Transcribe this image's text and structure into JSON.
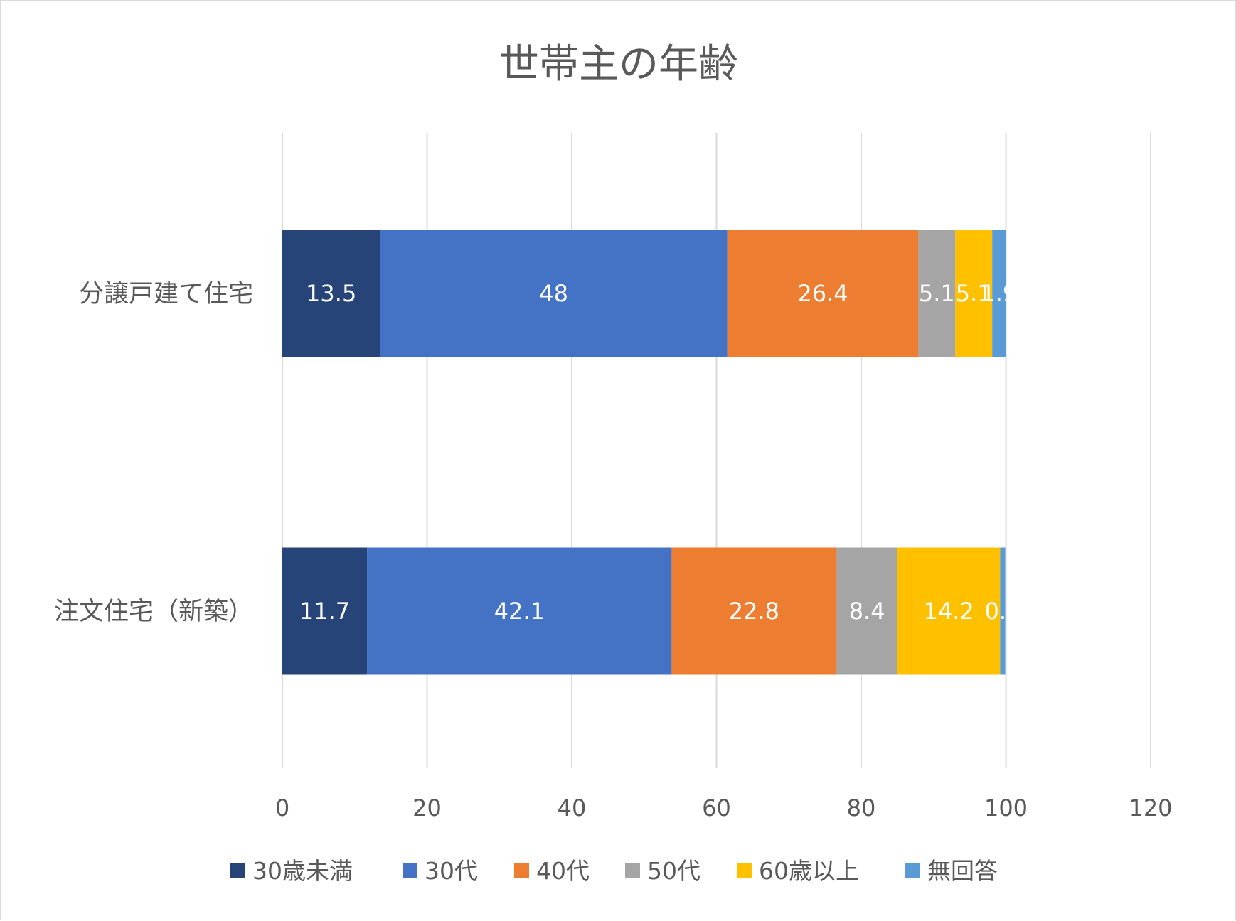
{
  "chart_data": {
    "type": "bar",
    "orientation": "horizontal",
    "stacked": true,
    "title": "世帯主の年齢",
    "categories": [
      "分譲戸建て住宅",
      "注文住宅（新築）"
    ],
    "series": [
      {
        "name": "30歳未満",
        "color": "#264478",
        "values": [
          13.5,
          11.7
        ],
        "labels": [
          "13.5",
          "11.7"
        ]
      },
      {
        "name": "30代",
        "color": "#4472C4",
        "values": [
          48,
          42.1
        ],
        "labels": [
          "48",
          "42.1"
        ]
      },
      {
        "name": "40代",
        "color": "#ED7D31",
        "values": [
          26.4,
          22.8
        ],
        "labels": [
          "26.4",
          "22.8"
        ]
      },
      {
        "name": "50代",
        "color": "#A5A5A5",
        "values": [
          5.1,
          8.4
        ],
        "labels": [
          "5.1",
          "8.4"
        ]
      },
      {
        "name": "60歳以上",
        "color": "#FFC000",
        "values": [
          5.1,
          14.2
        ],
        "labels": [
          "5.1",
          "14.2"
        ]
      },
      {
        "name": "無回答",
        "color": "#5B9BD5",
        "values": [
          1.9,
          0.7
        ],
        "labels": [
          "1.9",
          "0.7"
        ]
      }
    ],
    "xlim": [
      0,
      120
    ],
    "ticks": [
      "0",
      "20",
      "40",
      "60",
      "80",
      "100",
      "120"
    ],
    "grid": true,
    "legend_position": "bottom"
  }
}
